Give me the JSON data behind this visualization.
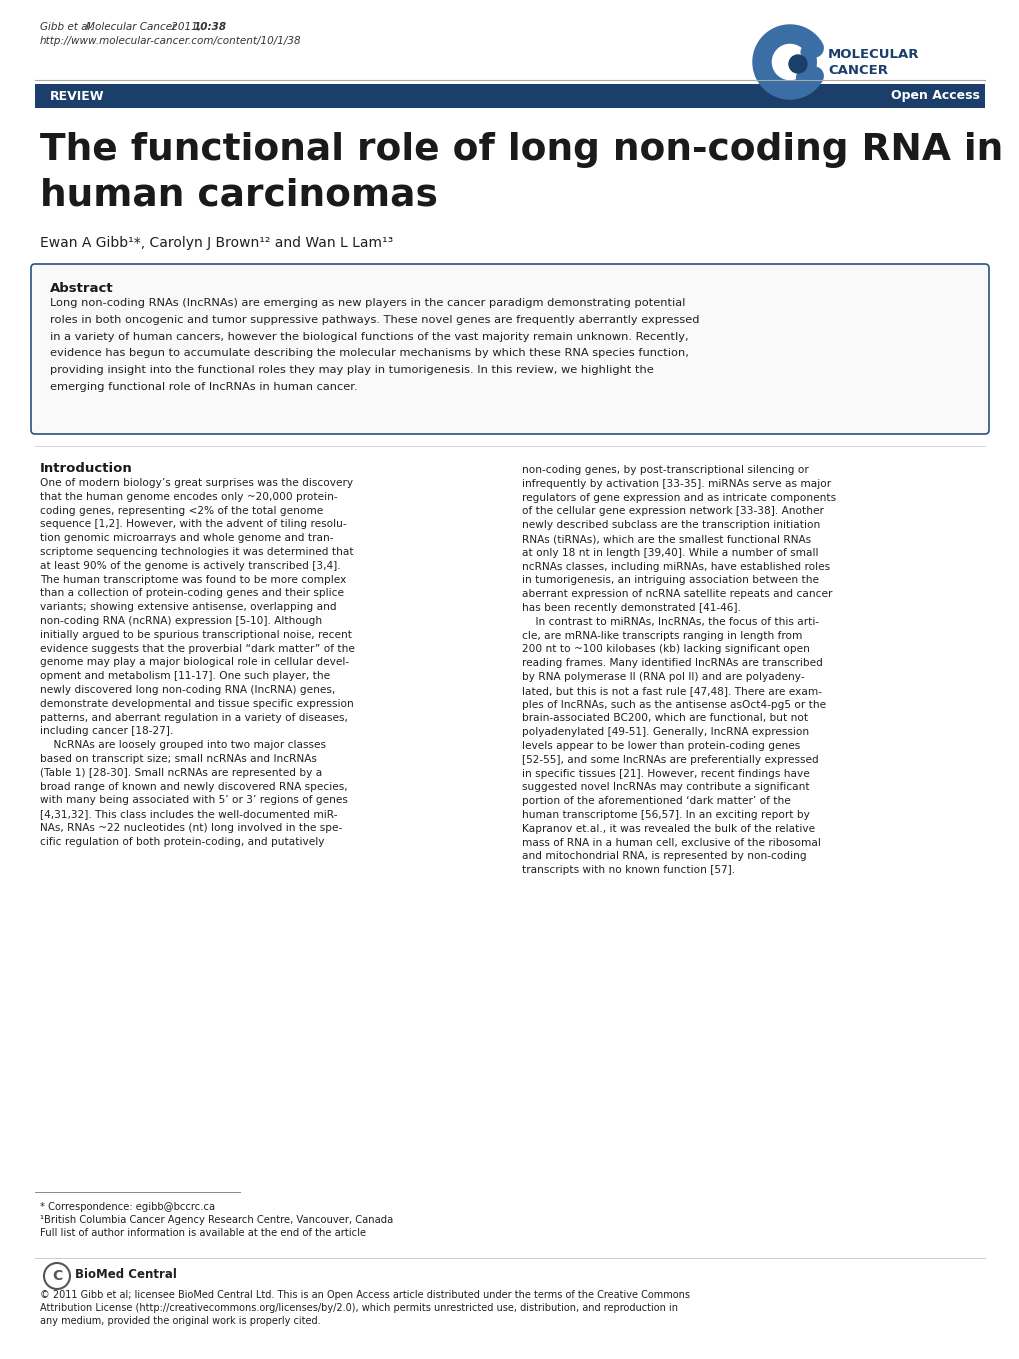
{
  "bg_color": "#ffffff",
  "header_citation": "Gibb et al. Molecular Cancer 2011, 10:38",
  "header_url": "http://www.molecular-cancer.com/content/10/1/38",
  "journal_name_line1": "MOLECULAR",
  "journal_name_line2": "CANCER",
  "review_bar_color": "#1b3f6a",
  "review_text": "REVIEW",
  "open_access_text": "Open Access",
  "title_line1": "The functional role of long non-coding RNA in",
  "title_line2": "human carcinomas",
  "authors": "Ewan A Gibb¹*, Carolyn J Brown¹² and Wan L Lam¹³",
  "abstract_title": "Abstract",
  "abstract_text": "Long non-coding RNAs (lncRNAs) are emerging as new players in the cancer paradigm demonstrating potential\nroles in both oncogenic and tumor suppressive pathways. These novel genes are frequently aberrantly expressed\nin a variety of human cancers, however the biological functions of the vast majority remain unknown. Recently,\nevidence has begun to accumulate describing the molecular mechanisms by which these RNA species function,\nproviding insight into the functional roles they may play in tumorigenesis. In this review, we highlight the\nemerging functional role of lncRNAs in human cancer.",
  "abstract_border_color": "#2a5080",
  "intro_title": "Introduction",
  "intro_col1": "One of modern biology’s great surprises was the discovery\nthat the human genome encodes only ~20,000 protein-\ncoding genes, representing <2% of the total genome\nsequence [1,2]. However, with the advent of tiling resolu-\ntion genomic microarrays and whole genome and tran-\nscriptome sequencing technologies it was determined that\nat least 90% of the genome is actively transcribed [3,4].\nThe human transcriptome was found to be more complex\nthan a collection of protein-coding genes and their splice\nvariants; showing extensive antisense, overlapping and\nnon-coding RNA (ncRNA) expression [5-10]. Although\ninitially argued to be spurious transcriptional noise, recent\nevidence suggests that the proverbial “dark matter” of the\ngenome may play a major biological role in cellular devel-\nopment and metabolism [11-17]. One such player, the\nnewly discovered long non-coding RNA (lncRNA) genes,\ndemonstrate developmental and tissue specific expression\npatterns, and aberrant regulation in a variety of diseases,\nincluding cancer [18-27].\n    NcRNAs are loosely grouped into two major classes\nbased on transcript size; small ncRNAs and lncRNAs\n(Table 1) [28-30]. Small ncRNAs are represented by a\nbroad range of known and newly discovered RNA species,\nwith many being associated with 5’ or 3’ regions of genes\n[4,31,32]. This class includes the well-documented miR-\nNAs, RNAs ~22 nucleotides (nt) long involved in the spe-\ncific regulation of both protein-coding, and putatively",
  "intro_col2": "non-coding genes, by post-transcriptional silencing or\ninfrequently by activation [33-35]. miRNAs serve as major\nregulators of gene expression and as intricate components\nof the cellular gene expression network [33-38]. Another\nnewly described subclass are the transcription initiation\nRNAs (tiRNAs), which are the smallest functional RNAs\nat only 18 nt in length [39,40]. While a number of small\nncRNAs classes, including miRNAs, have established roles\nin tumorigenesis, an intriguing association between the\naberrant expression of ncRNA satellite repeats and cancer\nhas been recently demonstrated [41-46].\n    In contrast to miRNAs, lncRNAs, the focus of this arti-\ncle, are mRNA-like transcripts ranging in length from\n200 nt to ~100 kilobases (kb) lacking significant open\nreading frames. Many identified lncRNAs are transcribed\nby RNA polymerase II (RNA pol II) and are polyadeny-\nlated, but this is not a fast rule [47,48]. There are exam-\nples of lncRNAs, such as the antisense asOct4-pg5 or the\nbrain-associated BC200, which are functional, but not\npolyadenylated [49-51]. Generally, lncRNA expression\nlevels appear to be lower than protein-coding genes\n[52-55], and some lncRNAs are preferentially expressed\nin specific tissues [21]. However, recent findings have\nsuggested novel lncRNAs may contribute a significant\nportion of the aforementioned ‘dark matter’ of the\nhuman transcriptome [56,57]. In an exciting report by\nKapranov et.al., it was revealed the bulk of the relative\nmass of RNA in a human cell, exclusive of the ribosomal\nand mitochondrial RNA, is represented by non-coding\ntranscripts with no known function [57].",
  "footnote1": "* Correspondence: egibb@bccrc.ca",
  "footnote2": "¹British Columbia Cancer Agency Research Centre, Vancouver, Canada",
  "footnote3": "Full list of author information is available at the end of the article",
  "biomedcentral_text": "© 2011 Gibb et al; licensee BioMed Central Ltd. This is an Open Access article distributed under the terms of the Creative Commons\nAttribution License (http://creativecommons.org/licenses/by/2.0), which permits unrestricted use, distribution, and reproduction in\nany medium, provided the original work is properly cited.",
  "title_color": "#1a1a1a",
  "text_color": "#231f20",
  "intro_title_color": "#1a1a1a",
  "logo_arc_color": "#3a6ea5",
  "logo_dot_color": "#1b3f6a",
  "logo_text_color": "#1b3f6a"
}
